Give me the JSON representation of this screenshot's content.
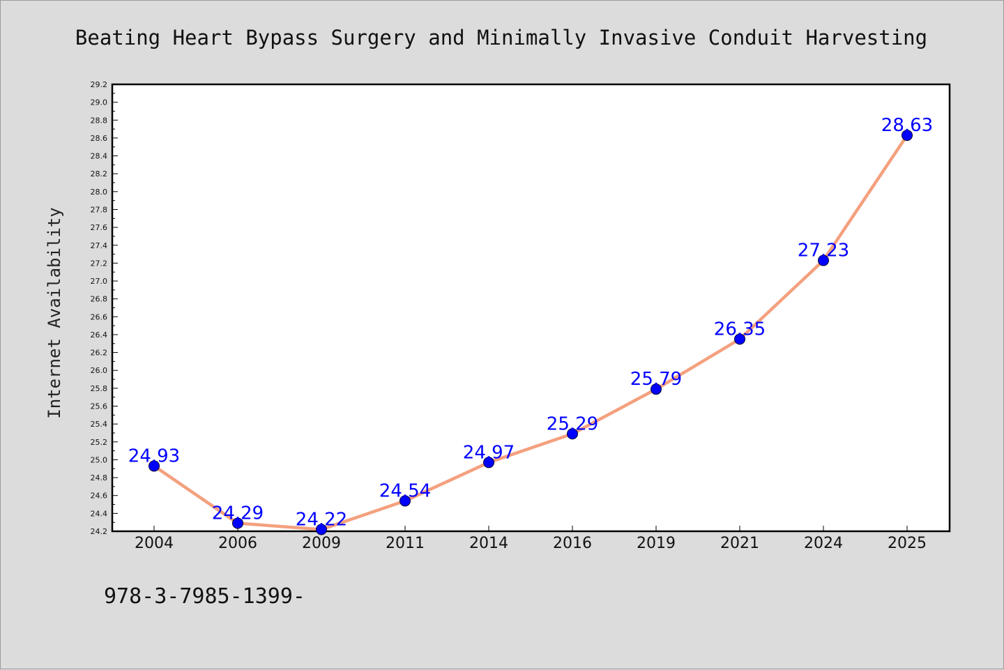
{
  "chart_data": {
    "type": "line",
    "title": "Beating Heart Bypass Surgery and Minimally Invasive Conduit Harvesting",
    "xlabel": "",
    "ylabel": "Internet Availability",
    "categories": [
      "2004",
      "2006",
      "2009",
      "2011",
      "2014",
      "2016",
      "2019",
      "2021",
      "2024",
      "2025"
    ],
    "values": [
      24.93,
      24.29,
      24.22,
      24.54,
      24.97,
      25.29,
      25.79,
      26.35,
      27.23,
      28.63
    ],
    "data_labels": [
      "24.93",
      "24.29",
      "24.22",
      "24.54",
      "24.97",
      "25.29",
      "25.79",
      "26.35",
      "27.23",
      "28.63"
    ],
    "ylim": [
      24.2,
      29.2
    ],
    "yticks": [
      "24.2",
      "24.4",
      "24.6",
      "24.8",
      "25.0",
      "25.2",
      "25.4",
      "25.6",
      "25.8",
      "26.0",
      "26.2",
      "26.4",
      "26.6",
      "26.8",
      "27.0",
      "27.2",
      "27.4",
      "27.6",
      "27.8",
      "28.0",
      "28.2",
      "28.4",
      "28.6",
      "28.8",
      "29.0",
      "29.2"
    ],
    "grid": false,
    "line_color": "#f4a07e",
    "marker_color": "#0000ff",
    "label_color": "#0000ff"
  },
  "footer": {
    "code": "978-3-7985-1399-"
  }
}
